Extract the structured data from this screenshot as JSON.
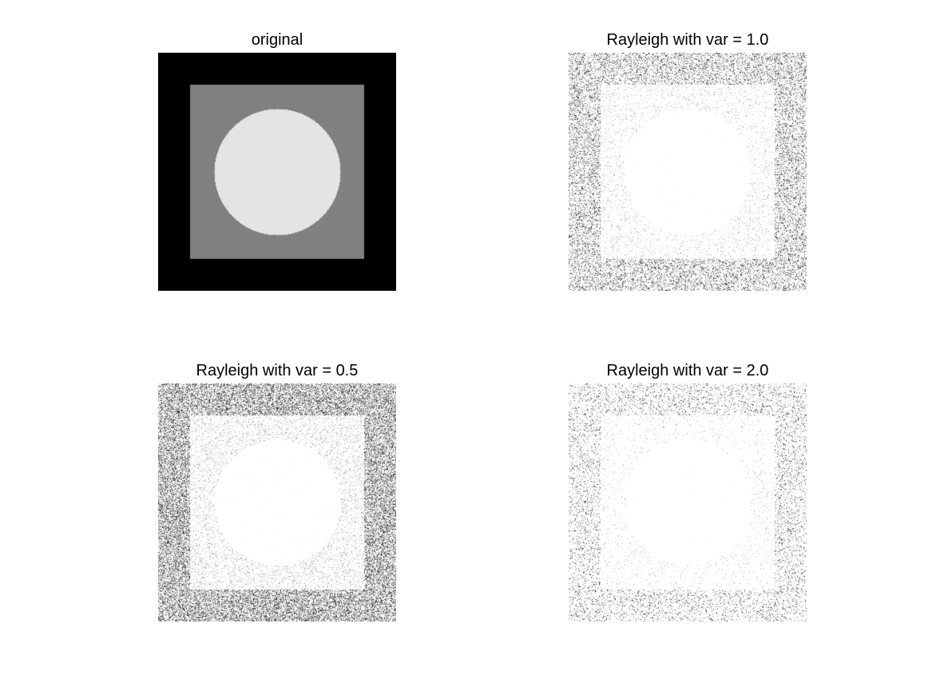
{
  "figure": {
    "panels": [
      {
        "id": "original",
        "title": "original",
        "noise": null,
        "colors": {
          "background": "#000000",
          "square": "#808080",
          "disk": "#e4e4e4"
        }
      },
      {
        "id": "var1",
        "title": "Rayleigh with var = 1.0",
        "noise": {
          "type": "rayleigh",
          "var": 1.0
        }
      },
      {
        "id": "var05",
        "title": "Rayleigh with var = 0.5",
        "noise": {
          "type": "rayleigh",
          "var": 0.5
        }
      },
      {
        "id": "var2",
        "title": "Rayleigh with var = 2.0",
        "noise": {
          "type": "rayleigh",
          "var": 2.0
        }
      }
    ]
  }
}
